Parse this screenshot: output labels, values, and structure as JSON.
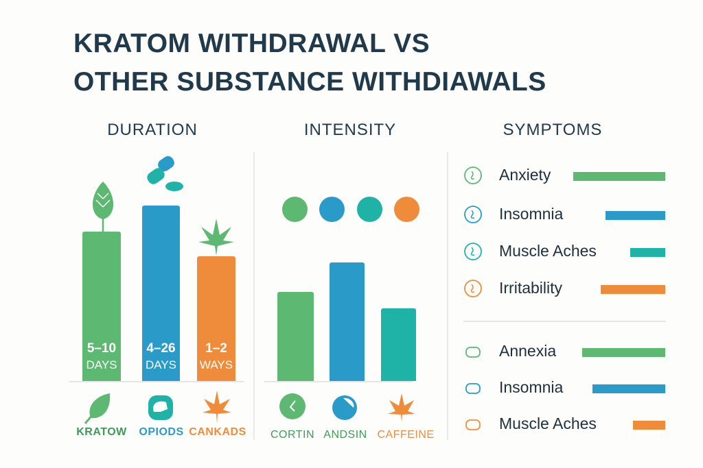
{
  "title_lines": [
    "KRATOM WITHDRAWAL VS",
    "OTHER SUBSTANCE WITHDIAWALS"
  ],
  "colors": {
    "green": "#5db872",
    "blue": "#2a9bc9",
    "teal": "#1fb3a8",
    "orange": "#ef8c3c",
    "text": "#213a4b"
  },
  "chart_data": [
    {
      "type": "bar",
      "title": "DURATION",
      "categories": [
        "KRATOW",
        "OPIODS",
        "CANKADS"
      ],
      "bar_labels": [
        {
          "value": "5–10",
          "unit": "DAYS"
        },
        {
          "value": "4–26",
          "unit": "DAYS"
        },
        {
          "value": "1–2",
          "unit": "WAYS"
        }
      ],
      "values_relative": [
        0.85,
        1.0,
        0.71
      ],
      "colors": [
        "#5db872",
        "#2a9bc9",
        "#ef8c3c"
      ],
      "icons": [
        "leaf-icon",
        "pill-icon",
        "cannabis-leaf-icon"
      ]
    },
    {
      "type": "bar",
      "title": "INTENSITY",
      "categories": [
        "CORTIN",
        "ANDSIN",
        "CAFFEINE"
      ],
      "values_relative": [
        0.75,
        1.0,
        0.61
      ],
      "colors": [
        "#5db872",
        "#2a9bc9",
        "#1fb3a8"
      ],
      "legend_dot_colors": [
        "#5db872",
        "#2a9bc9",
        "#1fb3a8",
        "#ef8c3c"
      ],
      "icons": [
        "clock-icon",
        "pill-circle-icon",
        "cannabis-leaf-icon"
      ]
    },
    {
      "type": "bar",
      "orientation": "horizontal",
      "title": "SYMPTOMS",
      "groups": [
        [
          {
            "label": "Anxiety",
            "value_relative": 1.0,
            "color": "#5db872",
            "icon": "anxiety-icon"
          },
          {
            "label": "Insomnia",
            "value_relative": 0.65,
            "color": "#2a9bc9",
            "icon": "sad-face-icon"
          },
          {
            "label": "Muscle Aches",
            "value_relative": 0.38,
            "color": "#1fb3a8",
            "icon": "muscle-icon"
          },
          {
            "label": "Irritability",
            "value_relative": 0.7,
            "color": "#ef8c3c",
            "icon": "irritability-icon"
          }
        ],
        [
          {
            "label": "Annexia",
            "value_relative": 0.9,
            "color": "#5db872",
            "icon": "stomach-icon"
          },
          {
            "label": "Insomnia",
            "value_relative": 0.79,
            "color": "#2a9bc9",
            "icon": "arrow-icon"
          },
          {
            "label": "Muscle Aches",
            "value_relative": 0.35,
            "color": "#ef8c3c",
            "icon": "capsule-icon"
          }
        ]
      ]
    }
  ]
}
